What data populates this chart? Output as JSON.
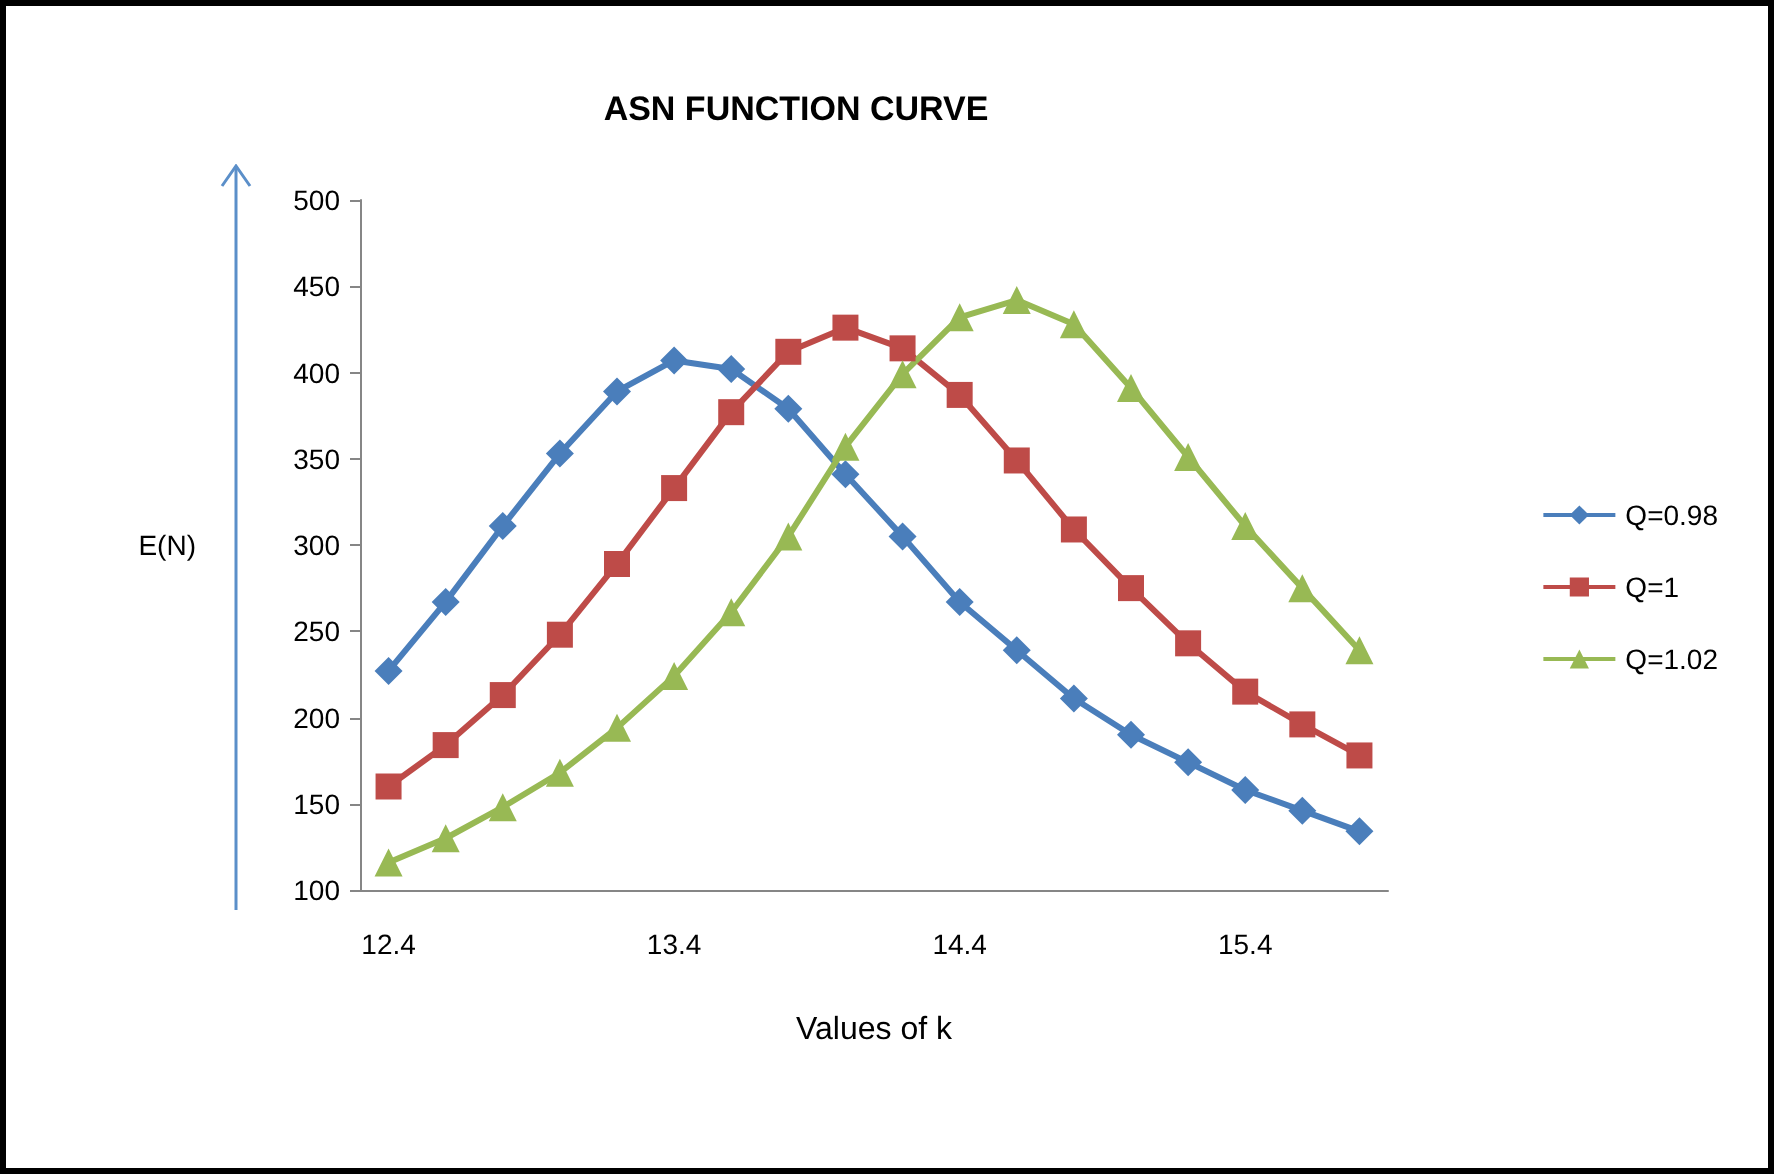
{
  "chart_data": {
    "type": "line",
    "title": "ASN FUNCTION CURVE",
    "xlabel": "Values of k",
    "ylabel": "E(N)",
    "categories": [
      "12.4",
      null,
      null,
      null,
      null,
      "13.4",
      null,
      null,
      null,
      null,
      "14.4",
      null,
      null,
      null,
      null,
      "15.4",
      null,
      null
    ],
    "series": [
      {
        "name": "Q=0.98",
        "color": "#4a7ebb",
        "marker": "diamond",
        "values": [
          227,
          267,
          311,
          353,
          389,
          407,
          402,
          379,
          341,
          305,
          267,
          239,
          211,
          190,
          174,
          158,
          146,
          134
        ]
      },
      {
        "name": "Q=1",
        "color": "#be4b48",
        "marker": "square",
        "values": [
          160,
          184,
          213,
          248,
          289,
          333,
          377,
          412,
          426,
          414,
          387,
          349,
          309,
          275,
          243,
          215,
          196,
          178
        ]
      },
      {
        "name": "Q=1.02",
        "color": "#98b954",
        "marker": "triangle",
        "values": [
          116,
          130,
          148,
          168,
          194,
          224,
          261,
          305,
          357,
          399,
          432,
          442,
          428,
          391,
          351,
          311,
          275,
          239
        ]
      }
    ],
    "ylim": [
      100,
      500
    ],
    "yticks": [
      100,
      150,
      200,
      250,
      300,
      350,
      400,
      450,
      500
    ],
    "grid": false,
    "legend": "right"
  }
}
